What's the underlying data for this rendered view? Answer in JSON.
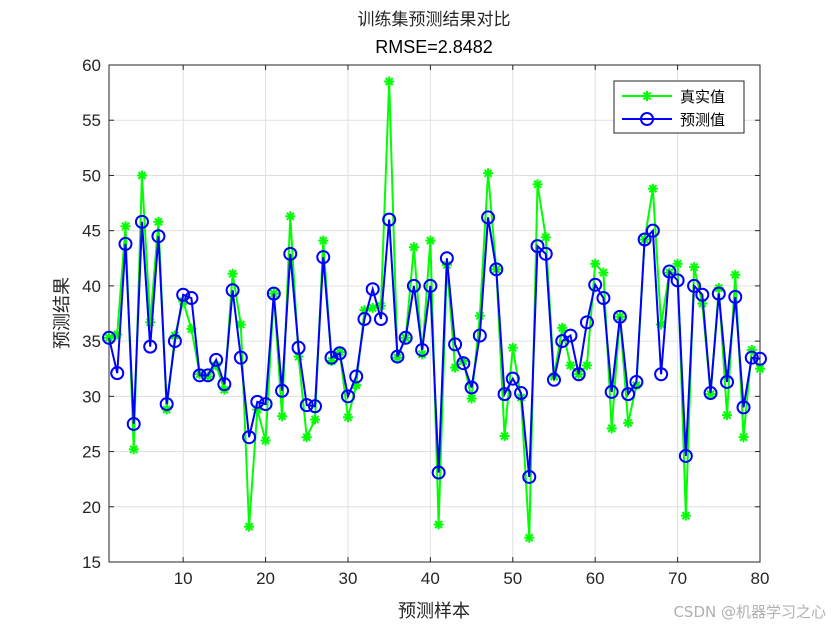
{
  "chart_data": {
    "type": "line",
    "title": "训练集预测结果对比",
    "subtitle": "RMSE=2.8482",
    "xlabel": "预测样本",
    "ylabel": "预测结果",
    "xlim": [
      1,
      80
    ],
    "ylim": [
      15,
      60
    ],
    "xticks": [
      10,
      20,
      30,
      40,
      50,
      60,
      70,
      80
    ],
    "yticks": [
      15,
      20,
      25,
      30,
      35,
      40,
      45,
      50,
      55,
      60
    ],
    "grid": true,
    "legend_position": "top-right",
    "x": [
      1,
      2,
      3,
      4,
      5,
      6,
      7,
      8,
      9,
      10,
      11,
      12,
      13,
      14,
      15,
      16,
      17,
      18,
      19,
      20,
      21,
      22,
      23,
      24,
      25,
      26,
      27,
      28,
      29,
      30,
      31,
      32,
      33,
      34,
      35,
      36,
      37,
      38,
      39,
      40,
      41,
      42,
      43,
      44,
      45,
      46,
      47,
      48,
      49,
      50,
      51,
      52,
      53,
      54,
      55,
      56,
      57,
      58,
      59,
      60,
      61,
      62,
      63,
      64,
      65,
      66,
      67,
      68,
      69,
      70,
      71,
      72,
      73,
      74,
      75,
      76,
      77,
      78,
      79,
      80
    ],
    "series": [
      {
        "name": "真实值",
        "color": "#00ff00",
        "marker": "asterisk",
        "values": [
          35.3,
          35.6,
          45.4,
          25.2,
          50.0,
          36.7,
          45.8,
          28.8,
          35.5,
          38.6,
          36.1,
          32.0,
          31.8,
          32.8,
          30.6,
          41.1,
          36.5,
          18.2,
          28.8,
          26.0,
          39.3,
          28.2,
          46.3,
          33.6,
          26.3,
          27.9,
          44.1,
          33.2,
          34.0,
          28.1,
          31.0,
          37.8,
          38.0,
          38.2,
          58.5,
          33.5,
          35.3,
          43.5,
          33.8,
          44.1,
          18.4,
          41.9,
          32.6,
          33.2,
          29.8,
          37.3,
          50.2,
          41.5,
          26.4,
          34.4,
          29.9,
          17.2,
          49.2,
          44.4,
          31.8,
          36.2,
          32.8,
          32.0,
          32.8,
          42.0,
          41.2,
          27.1,
          37.2,
          27.6,
          31.0,
          44.2,
          48.8,
          36.5,
          41.2,
          42.0,
          19.2,
          41.7,
          38.4,
          30.2,
          39.8,
          28.3,
          41.0,
          26.3,
          34.2,
          32.5
        ]
      },
      {
        "name": "预测值",
        "color": "#0000ff",
        "marker": "circle",
        "values": [
          35.3,
          32.1,
          43.8,
          27.5,
          45.8,
          34.5,
          44.5,
          29.3,
          35.0,
          39.2,
          38.9,
          31.9,
          31.9,
          33.3,
          31.1,
          39.6,
          33.5,
          26.3,
          29.5,
          29.3,
          39.3,
          30.5,
          42.9,
          34.4,
          29.2,
          29.1,
          42.6,
          33.5,
          33.9,
          30.0,
          31.8,
          37.0,
          39.7,
          37.0,
          46.0,
          33.6,
          35.3,
          40.0,
          34.2,
          40.0,
          23.1,
          42.5,
          34.7,
          33.0,
          30.8,
          35.5,
          46.2,
          41.5,
          30.2,
          31.6,
          30.3,
          22.7,
          43.6,
          42.9,
          31.5,
          35.0,
          35.5,
          32.0,
          36.7,
          40.1,
          38.9,
          30.4,
          37.2,
          30.2,
          31.3,
          44.2,
          45.0,
          32.0,
          41.3,
          40.5,
          24.6,
          40.0,
          39.2,
          30.3,
          39.3,
          31.3,
          39.0,
          29.0,
          33.5,
          33.4
        ]
      }
    ]
  },
  "watermark": "CSDN @机器学习之心"
}
